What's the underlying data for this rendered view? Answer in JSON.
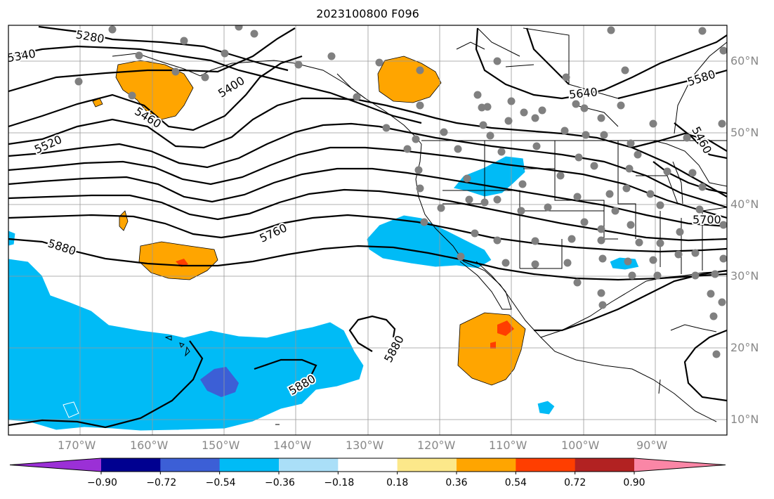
{
  "title": "2023100800 F096",
  "lat_labels": [
    "60°N",
    "50°N",
    "40°N",
    "30°N",
    "20°N",
    "10°N"
  ],
  "lon_labels": [
    "170°W",
    "160°W",
    "150°W",
    "140°W",
    "130°W",
    "120°W",
    "110°W",
    "100°W",
    "90°W"
  ],
  "colorbar": {
    "ticks": [
      "−0.90",
      "−0.72",
      "−0.54",
      "−0.36",
      "−0.18",
      "0.18",
      "0.36",
      "0.54",
      "0.72",
      "0.90"
    ],
    "colors": [
      "#9b30d6",
      "#000090",
      "#3c5fd6",
      "#00bbf6",
      "#aadff8",
      "#ffffff",
      "#fce88a",
      "#ffa500",
      "#ff3e00",
      "#b22222",
      "#fa86a6"
    ]
  },
  "contour_labels": [
    "5280",
    "5340",
    "5400",
    "5460",
    "5520",
    "5580",
    "5640",
    "5700",
    "5760",
    "5880",
    "5880",
    "5880",
    "5460"
  ],
  "colors": {
    "positive_shade": "#ffa500",
    "negative_shade": "#00bbf6",
    "strong_negative": "#3c5fd6",
    "strong_positive": "#ff3e00",
    "station_dot": "#808080"
  }
}
